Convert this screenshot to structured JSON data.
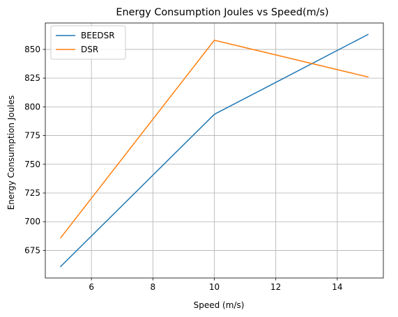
{
  "chart_data": {
    "type": "line",
    "title": "Energy Consumption Joules vs Speed(m/s)",
    "xlabel": "Speed (m/s)",
    "ylabel": "Energy Consumption Joules",
    "x": [
      5,
      10,
      15
    ],
    "series": [
      {
        "name": "BEEDSR",
        "color": "#1f77b4",
        "values": [
          661,
          793.5,
          863
        ]
      },
      {
        "name": "DSR",
        "color": "#ff7f0e",
        "values": [
          686,
          858,
          826
        ]
      }
    ],
    "xlim": [
      4.5,
      15.5
    ],
    "ylim": [
      651,
      873
    ],
    "xticks": [
      6,
      8,
      10,
      12,
      14
    ],
    "xtick_labels": [
      "6",
      "8",
      "10",
      "12",
      "14"
    ],
    "yticks": [
      675,
      700,
      725,
      750,
      775,
      800,
      825,
      850
    ],
    "ytick_labels": [
      "675",
      "700",
      "725",
      "750",
      "775",
      "800",
      "825",
      "850"
    ],
    "grid": true,
    "legend_position": "top-left"
  }
}
